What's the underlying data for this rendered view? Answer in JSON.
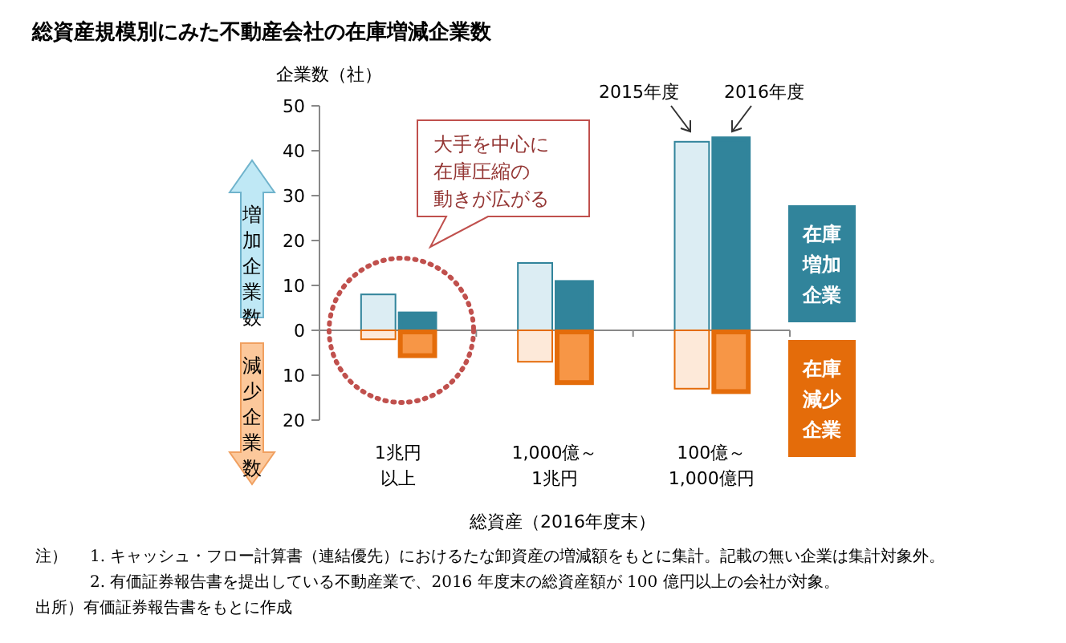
{
  "chart_data": {
    "type": "bar",
    "title": "総資産規模別にみた不動産会社の在庫増減企業数",
    "ylabel": "企業数（社）",
    "xlabel": "総資産（2016年度末）",
    "categories": [
      null,
      "1兆円以上",
      null,
      null,
      null,
      "1,000億～1兆円",
      null,
      null,
      null,
      "100億～1,000億円",
      null,
      null
    ],
    "stacked": true,
    "legend": "right",
    "series": [
      {
        "name": "在庫増加企業",
        "color": "#31849b",
        "colors": [
          null,
          "#dcedf3",
          "#31849b",
          null,
          null,
          "#dcedf3",
          "#31849b",
          null,
          null,
          "#dcedf3",
          "#31849b",
          null
        ],
        "values": [
          null,
          8,
          4,
          null,
          null,
          15,
          11,
          null,
          null,
          42,
          43,
          null
        ]
      },
      {
        "name": "在庫減少企業",
        "color": "#e46c0a",
        "colors": [
          null,
          "#fde9d9",
          "#f79646",
          null,
          null,
          "#fde9d9",
          "#f79646",
          null,
          null,
          "#fde9d9",
          "#f79646",
          null
        ],
        "values": [
          null,
          -2,
          -6,
          null,
          null,
          -7,
          -12,
          null,
          null,
          -13,
          -14,
          null
        ]
      }
    ],
    "ylim": [
      -20,
      50
    ],
    "yticks": [
      {
        "value": -20,
        "label": "20"
      },
      {
        "value": -10,
        "label": "10"
      },
      0,
      10,
      20,
      30,
      40,
      50
    ],
    "annotations": [
      "2015年度",
      "2016年度",
      "大手を中心に",
      "在庫圧縮の",
      "動きが広がる",
      "増加企業数",
      "減少企業数",
      "注）",
      "1. キャッシュ・フロー計算書（連結優先）におけるたな卸資産の増減額をもとに集計。記載の無い企業は集計対象外。",
      "2. 有価証券報告書を提出している不動産業で、2016 年度末の総資産額が 100 億円以上の会社が対象。",
      "出所）有価証券報告書をもとに作成"
    ]
  }
}
